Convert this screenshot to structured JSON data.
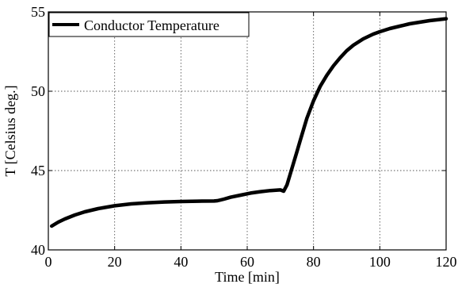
{
  "chart_data": {
    "type": "line",
    "title": "",
    "xlabel": "Time [min]",
    "ylabel": "T [Celsius deg.]",
    "xlim": [
      0,
      120
    ],
    "ylim": [
      40,
      55
    ],
    "xticks": [
      0,
      20,
      40,
      60,
      80,
      100,
      120
    ],
    "yticks": [
      40,
      45,
      50,
      55
    ],
    "xtick_labels": [
      "0",
      "20",
      "40",
      "60",
      "80",
      "100",
      "120"
    ],
    "ytick_labels": [
      "40",
      "45",
      "50",
      "55"
    ],
    "grid": true,
    "legend_position": "top-left",
    "series": [
      {
        "name": "Conductor Temperature",
        "color": "#000000",
        "x": [
          1,
          3,
          5,
          8,
          11,
          15,
          20,
          25,
          30,
          35,
          40,
          45,
          50,
          51,
          53,
          55,
          58,
          61,
          64,
          67,
          70,
          71,
          72,
          73,
          74,
          75,
          76,
          77,
          78,
          80,
          82,
          84,
          86,
          88,
          90,
          92,
          95,
          98,
          100,
          103,
          106,
          109,
          112,
          115,
          118,
          120
        ],
        "y": [
          41.5,
          41.75,
          41.95,
          42.2,
          42.4,
          42.6,
          42.78,
          42.9,
          42.97,
          43.02,
          43.05,
          43.07,
          43.08,
          43.1,
          43.2,
          43.32,
          43.45,
          43.58,
          43.67,
          43.74,
          43.78,
          43.7,
          44.1,
          44.8,
          45.5,
          46.2,
          46.9,
          47.6,
          48.3,
          49.4,
          50.3,
          51.0,
          51.6,
          52.1,
          52.55,
          52.9,
          53.3,
          53.6,
          53.75,
          53.95,
          54.1,
          54.25,
          54.35,
          54.45,
          54.52,
          54.57
        ]
      }
    ]
  }
}
